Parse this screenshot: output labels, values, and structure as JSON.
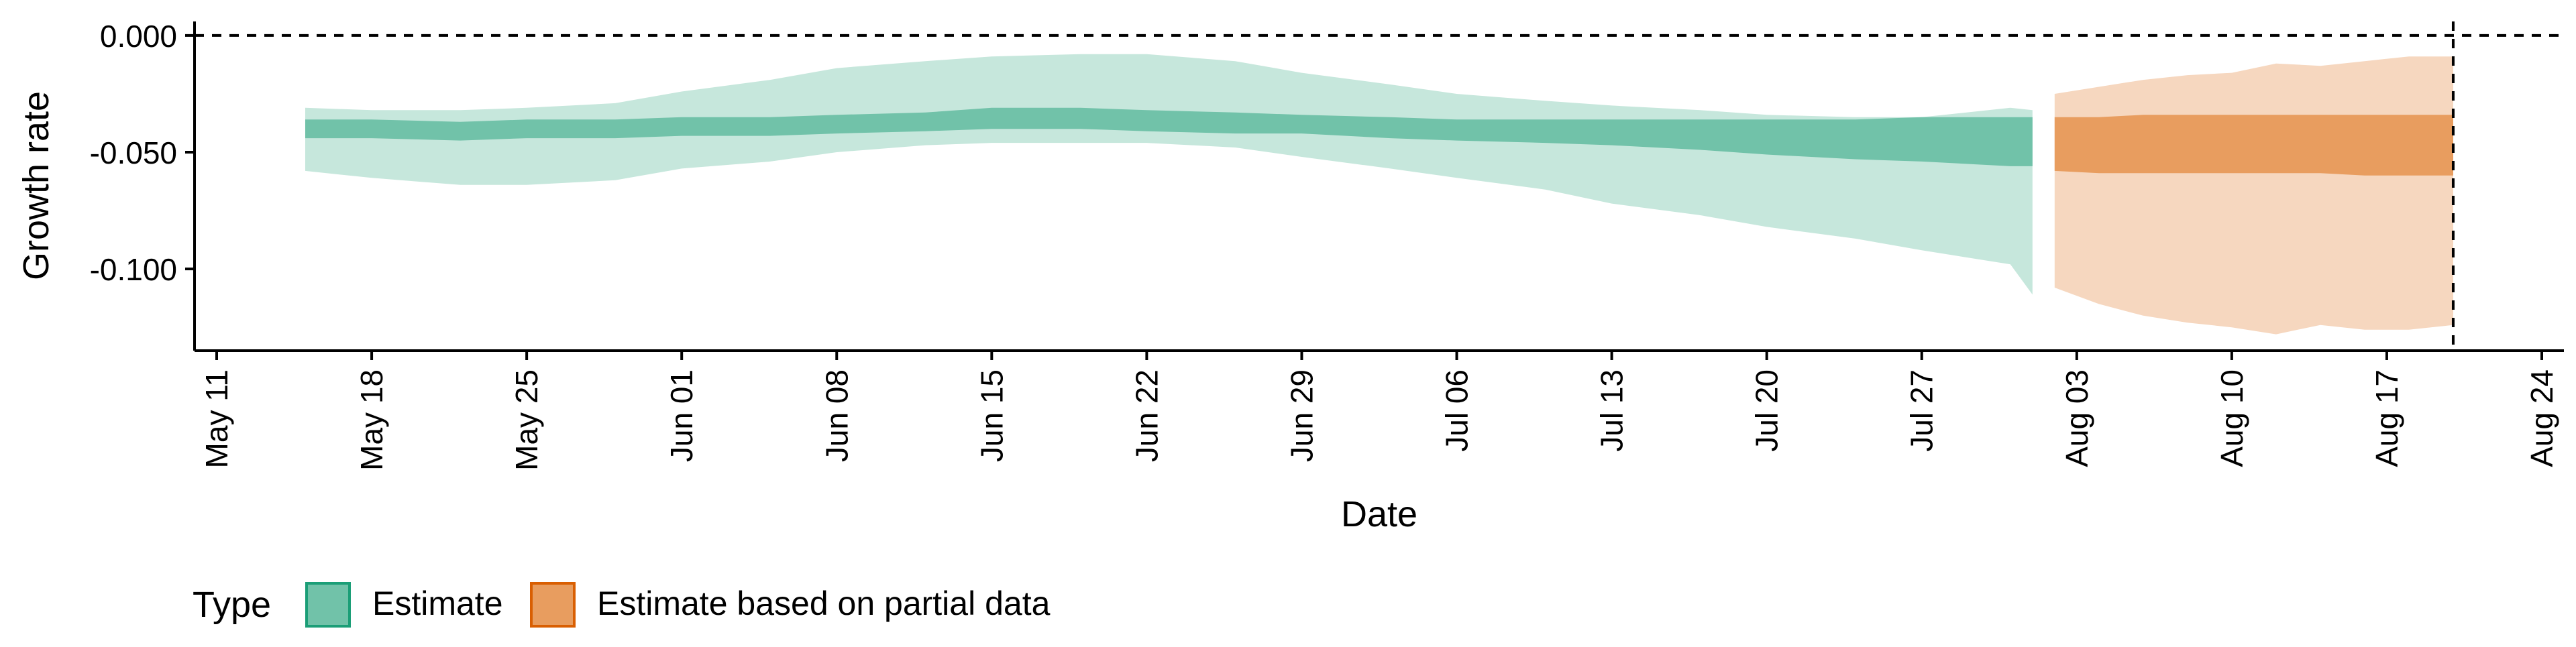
{
  "chart_data": {
    "type": "area",
    "xlabel": "Date",
    "ylabel": "Growth rate",
    "x_ticks": [
      "May 11",
      "May 18",
      "May 25",
      "Jun 01",
      "Jun 08",
      "Jun 15",
      "Jun 22",
      "Jun 29",
      "Jul 06",
      "Jul 13",
      "Jul 20",
      "Jul 27",
      "Aug 03",
      "Aug 10",
      "Aug 17",
      "Aug 24"
    ],
    "y_ticks": [
      "0.000",
      "-0.050",
      "-0.100"
    ],
    "y_tick_values": [
      0,
      -0.05,
      -0.1
    ],
    "xlim": [
      "2020-05-10",
      "2020-08-25"
    ],
    "ylim": [
      -0.135,
      0.006
    ],
    "reference_lines": [
      {
        "axis": "y",
        "value": 0,
        "style": "dashed"
      },
      {
        "axis": "x",
        "value": "2020-08-20",
        "style": "dashed"
      }
    ],
    "legend": {
      "title": "Type",
      "position": "bottom-left",
      "items": [
        {
          "label": "Estimate",
          "color": "#1b9e77"
        },
        {
          "label": "Estimate based on partial data",
          "color": "#d95f02"
        }
      ]
    },
    "series": [
      {
        "name": "Estimate",
        "color": "#1b9e77",
        "dates": [
          "2020-05-15",
          "2020-05-18",
          "2020-05-22",
          "2020-05-25",
          "2020-05-29",
          "2020-06-01",
          "2020-06-05",
          "2020-06-08",
          "2020-06-12",
          "2020-06-15",
          "2020-06-19",
          "2020-06-22",
          "2020-06-26",
          "2020-06-29",
          "2020-07-03",
          "2020-07-06",
          "2020-07-10",
          "2020-07-13",
          "2020-07-17",
          "2020-07-20",
          "2020-07-24",
          "2020-07-27",
          "2020-07-31",
          "2020-08-01"
        ],
        "inner_lower": [
          -0.044,
          -0.044,
          -0.045,
          -0.044,
          -0.044,
          -0.043,
          -0.043,
          -0.042,
          -0.041,
          -0.04,
          -0.04,
          -0.041,
          -0.042,
          -0.042,
          -0.044,
          -0.045,
          -0.046,
          -0.047,
          -0.049,
          -0.051,
          -0.053,
          -0.054,
          -0.056,
          -0.056
        ],
        "inner_upper": [
          -0.036,
          -0.036,
          -0.037,
          -0.036,
          -0.036,
          -0.035,
          -0.035,
          -0.034,
          -0.033,
          -0.031,
          -0.031,
          -0.032,
          -0.033,
          -0.034,
          -0.035,
          -0.036,
          -0.036,
          -0.036,
          -0.036,
          -0.036,
          -0.036,
          -0.035,
          -0.035,
          -0.035
        ],
        "outer_lower": [
          -0.058,
          -0.061,
          -0.064,
          -0.064,
          -0.062,
          -0.057,
          -0.054,
          -0.05,
          -0.047,
          -0.046,
          -0.046,
          -0.046,
          -0.048,
          -0.052,
          -0.057,
          -0.061,
          -0.066,
          -0.072,
          -0.077,
          -0.082,
          -0.087,
          -0.092,
          -0.098,
          -0.111
        ],
        "outer_upper": [
          -0.031,
          -0.032,
          -0.032,
          -0.031,
          -0.029,
          -0.024,
          -0.019,
          -0.014,
          -0.011,
          -0.009,
          -0.008,
          -0.008,
          -0.011,
          -0.016,
          -0.021,
          -0.025,
          -0.028,
          -0.03,
          -0.032,
          -0.034,
          -0.035,
          -0.035,
          -0.031,
          -0.032
        ]
      },
      {
        "name": "Estimate based on partial data",
        "color": "#d95f02",
        "dates": [
          "2020-08-02",
          "2020-08-04",
          "2020-08-06",
          "2020-08-08",
          "2020-08-10",
          "2020-08-12",
          "2020-08-14",
          "2020-08-16",
          "2020-08-18",
          "2020-08-20"
        ],
        "inner_lower": [
          -0.058,
          -0.059,
          -0.059,
          -0.059,
          -0.059,
          -0.059,
          -0.059,
          -0.06,
          -0.06,
          -0.06
        ],
        "inner_upper": [
          -0.035,
          -0.035,
          -0.034,
          -0.034,
          -0.034,
          -0.034,
          -0.034,
          -0.034,
          -0.034,
          -0.034
        ],
        "outer_lower": [
          -0.108,
          -0.115,
          -0.12,
          -0.123,
          -0.125,
          -0.128,
          -0.124,
          -0.126,
          -0.126,
          -0.124
        ],
        "outer_upper": [
          -0.025,
          -0.022,
          -0.019,
          -0.017,
          -0.016,
          -0.012,
          -0.013,
          -0.011,
          -0.009,
          -0.009
        ]
      }
    ]
  }
}
